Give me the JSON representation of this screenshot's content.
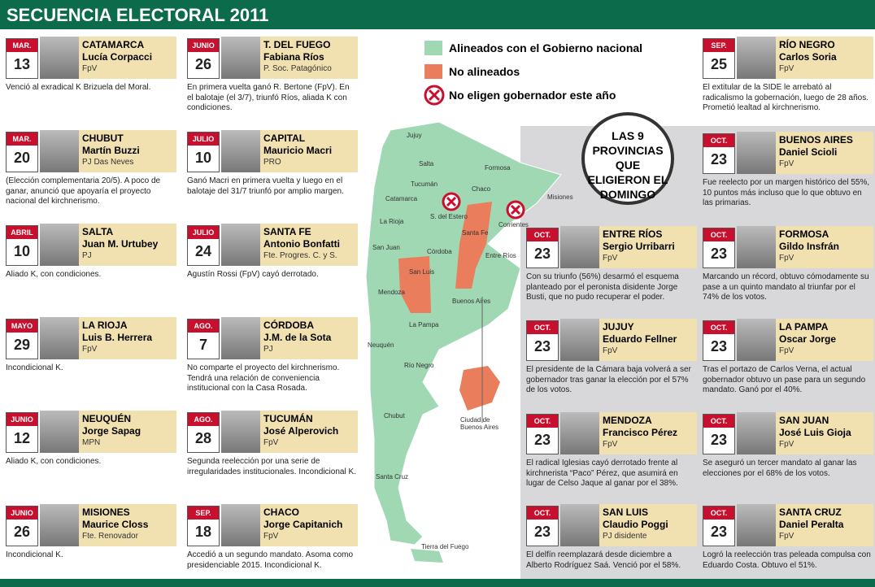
{
  "title": "SECUENCIA ELECTORAL 2011",
  "legend": {
    "aligned": "Alineados con el Gobierno nacional",
    "not_aligned": "No alineados",
    "no_election": "No eligen gobernador este año"
  },
  "callout": "LAS 9 PROVINCIAS QUE ELIGIERON EL DOMINGO",
  "map_labels": [
    "Jujuy",
    "Salta",
    "Formosa",
    "Tucumán",
    "Chaco",
    "Misiones",
    "Catamarca",
    "S. del Estero",
    "Corrientes",
    "La Rioja",
    "Santa Fe",
    "San Juan",
    "Córdoba",
    "Entre Ríos",
    "San Luis",
    "Mendoza",
    "Buenos Aires",
    "La Pampa",
    "Neuquén",
    "Río Negro",
    "Chubut",
    "Santa Cruz",
    "Tierra del Fuego",
    "Ciudad de Buenos Aires"
  ],
  "cards": {
    "left": [
      {
        "month": "MAR.",
        "day": "13",
        "province": "CATAMARCA",
        "name": "Lucía Corpacci",
        "party": "FpV",
        "text": "Venció al exradical K Brizuela del Moral."
      },
      {
        "month": "MAR.",
        "day": "20",
        "province": "CHUBUT",
        "name": "Martín Buzzi",
        "party": "PJ Das Neves",
        "text": "(Elección complementaria 20/5). A poco de ganar, anunció que apoyaría el proyecto nacional del kirchnerismo."
      },
      {
        "month": "ABRIL",
        "day": "10",
        "province": "SALTA",
        "name": "Juan M. Urtubey",
        "party": "PJ",
        "text": "Aliado K, con condiciones."
      },
      {
        "month": "MAYO",
        "day": "29",
        "province": "LA RIOJA",
        "name": "Luis B. Herrera",
        "party": "FpV",
        "text": "Incondicional K."
      },
      {
        "month": "JUNIO",
        "day": "12",
        "province": "NEUQUÉN",
        "name": "Jorge Sapag",
        "party": "MPN",
        "text": "Aliado K, con condiciones."
      },
      {
        "month": "JUNIO",
        "day": "26",
        "province": "MISIONES",
        "name": "Maurice Closs",
        "party": "Fte. Renovador",
        "text": "Incondicional K."
      }
    ],
    "middle": [
      {
        "month": "JUNIO",
        "day": "26",
        "province": "T. DEL FUEGO",
        "name": "Fabiana Ríos",
        "party": "P. Soc. Patagónico",
        "text": "En primera vuelta ganó R. Bertone (FpV). En el balotaje (el 3/7), triunfó Ríos, aliada K con condiciones."
      },
      {
        "month": "JULIO",
        "day": "10",
        "province": "CAPITAL",
        "name": "Mauricio Macri",
        "party": "PRO",
        "text": "Ganó Macri en primera vuelta y luego en el balotaje del 31/7 triunfó por amplio margen."
      },
      {
        "month": "JULIO",
        "day": "24",
        "province": "SANTA FE",
        "name": "Antonio Bonfatti",
        "party": "Fte. Progres. C. y S.",
        "text": "Agustín Rossi (FpV) cayó derrotado."
      },
      {
        "month": "AGO.",
        "day": "7",
        "province": "CÓRDOBA",
        "name": "J.M. de la Sota",
        "party": "PJ",
        "text": "No comparte el proyecto del kirchnerismo. Tendrá una relación de conveniencia institucional con la Casa Rosada."
      },
      {
        "month": "AGO.",
        "day": "28",
        "province": "TUCUMÁN",
        "name": "José Alperovich",
        "party": "FpV",
        "text": "Segunda reelección por una serie de irregularidades institucionales. Incondicional K."
      },
      {
        "month": "SEP.",
        "day": "18",
        "province": "CHACO",
        "name": "Jorge Capitanich",
        "party": "FpV",
        "text": "Accedió a un segundo mandato. Asoma como presidenciable 2015. Incondicional K."
      }
    ],
    "right_top": [
      {
        "month": "SEP.",
        "day": "25",
        "province": "RÍO NEGRO",
        "name": "Carlos Soria",
        "party": "FpV",
        "text": "El extitular de la SIDE le arrebató al radicalismo la gobernación, luego de 28 años. Prometió lealtad al kirchnerismo."
      },
      {
        "month": "OCT.",
        "day": "23",
        "province": "BUENOS AIRES",
        "name": "Daniel Scioli",
        "party": "FpV",
        "text": "Fue reelecto por un margen histórico del 55%, 10 puntos más incluso que lo que obtuvo en las primarias."
      }
    ],
    "panel_left": [
      {
        "month": "OCT.",
        "day": "23",
        "province": "ENTRE RÍOS",
        "name": "Sergio Urribarri",
        "party": "FpV",
        "text": "Con su triunfo (56%) desarmó el esquema planteado por el peronista disidente Jorge Busti, que no pudo recuperar el poder."
      },
      {
        "month": "OCT.",
        "day": "23",
        "province": "JUJUY",
        "name": "Eduardo Fellner",
        "party": "FpV",
        "text": "El presidente de la Cámara baja volverá a ser gobernador tras ganar la elección por el 57% de los votos."
      },
      {
        "month": "OCT.",
        "day": "23",
        "province": "MENDOZA",
        "name": "Francisco Pérez",
        "party": "FpV",
        "text": "El radical Iglesias cayó derrotado frente al kirchnerista “Paco” Pérez, que asumirá en lugar de Celso Jaque al ganar por el 38%."
      },
      {
        "month": "OCT.",
        "day": "23",
        "province": "SAN LUIS",
        "name": "Claudio Poggi",
        "party": "PJ disidente",
        "text": "El delfín reemplazará desde diciembre a Alberto Rodríguez Saá. Venció por el 58%."
      }
    ],
    "panel_right": [
      {
        "month": "OCT.",
        "day": "23",
        "province": "FORMOSA",
        "name": "Gildo Insfrán",
        "party": "FpV",
        "text": "Marcando un récord, obtuvo cómodamente su pase a un quinto mandato al triunfar por el 74% de los votos."
      },
      {
        "month": "OCT.",
        "day": "23",
        "province": "LA PAMPA",
        "name": "Oscar Jorge",
        "party": "FpV",
        "text": "Tras el portazo de Carlos Verna, el actual gobernador obtuvo un pase para un segundo mandato. Ganó por el 40%."
      },
      {
        "month": "OCT.",
        "day": "23",
        "province": "SAN JUAN",
        "name": "José Luis Gioja",
        "party": "FpV",
        "text": "Se aseguró un tercer mandato al ganar las elecciones por el 68% de los votos."
      },
      {
        "month": "OCT.",
        "day": "23",
        "province": "SANTA CRUZ",
        "name": "Daniel Peralta",
        "party": "FpV",
        "text": "Logró la reelección tras peleada compulsa con Eduardo Costa. Obtuvo el 51%."
      }
    ]
  }
}
